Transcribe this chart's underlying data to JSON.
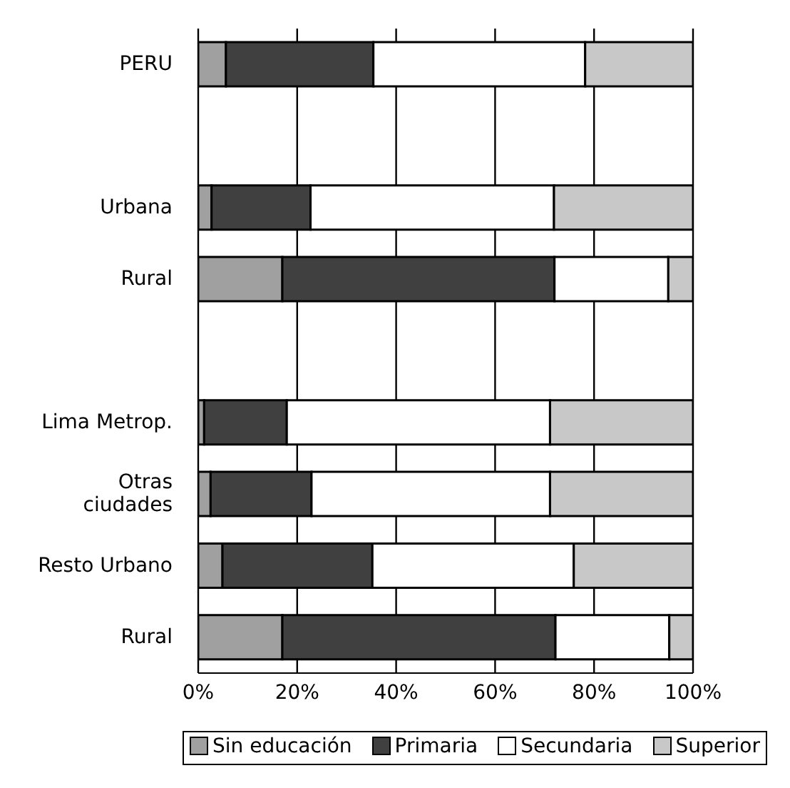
{
  "chart_data": {
    "type": "bar",
    "orientation": "horizontal",
    "stacked": true,
    "categories": [
      "PERU",
      null,
      "Urbana",
      "Rural",
      null,
      "Lima Metrop.",
      "Otras ciudades",
      "Resto Urbano",
      "Rural"
    ],
    "series": [
      {
        "name": "Sin educación",
        "color": "#a0a0a0",
        "values": [
          5.6,
          null,
          2.7,
          17,
          null,
          1.2,
          2.5,
          4.9,
          17
        ]
      },
      {
        "name": "Primaria",
        "color": "#404040",
        "values": [
          29.8,
          null,
          20,
          55,
          null,
          16.7,
          20.4,
          30.3,
          55.2
        ]
      },
      {
        "name": "Secundaria",
        "color": "#ffffff",
        "values": [
          42.8,
          null,
          49.2,
          23,
          null,
          53.2,
          48.2,
          40.7,
          23
        ]
      },
      {
        "name": "Superior",
        "color": "#c8c8c8",
        "values": [
          21.8,
          null,
          28.1,
          5,
          null,
          28.9,
          28.9,
          24.1,
          4.8
        ]
      }
    ],
    "xlim": [
      0,
      100
    ],
    "xticks": [
      {
        "value": 0,
        "label": "0%"
      },
      {
        "value": 20,
        "label": "20%"
      },
      {
        "value": 40,
        "label": "40%"
      },
      {
        "value": 60,
        "label": "60%"
      },
      {
        "value": 80,
        "label": "80%"
      },
      {
        "value": 100,
        "label": "100%"
      }
    ],
    "grid": "x",
    "legend": "bottom"
  }
}
